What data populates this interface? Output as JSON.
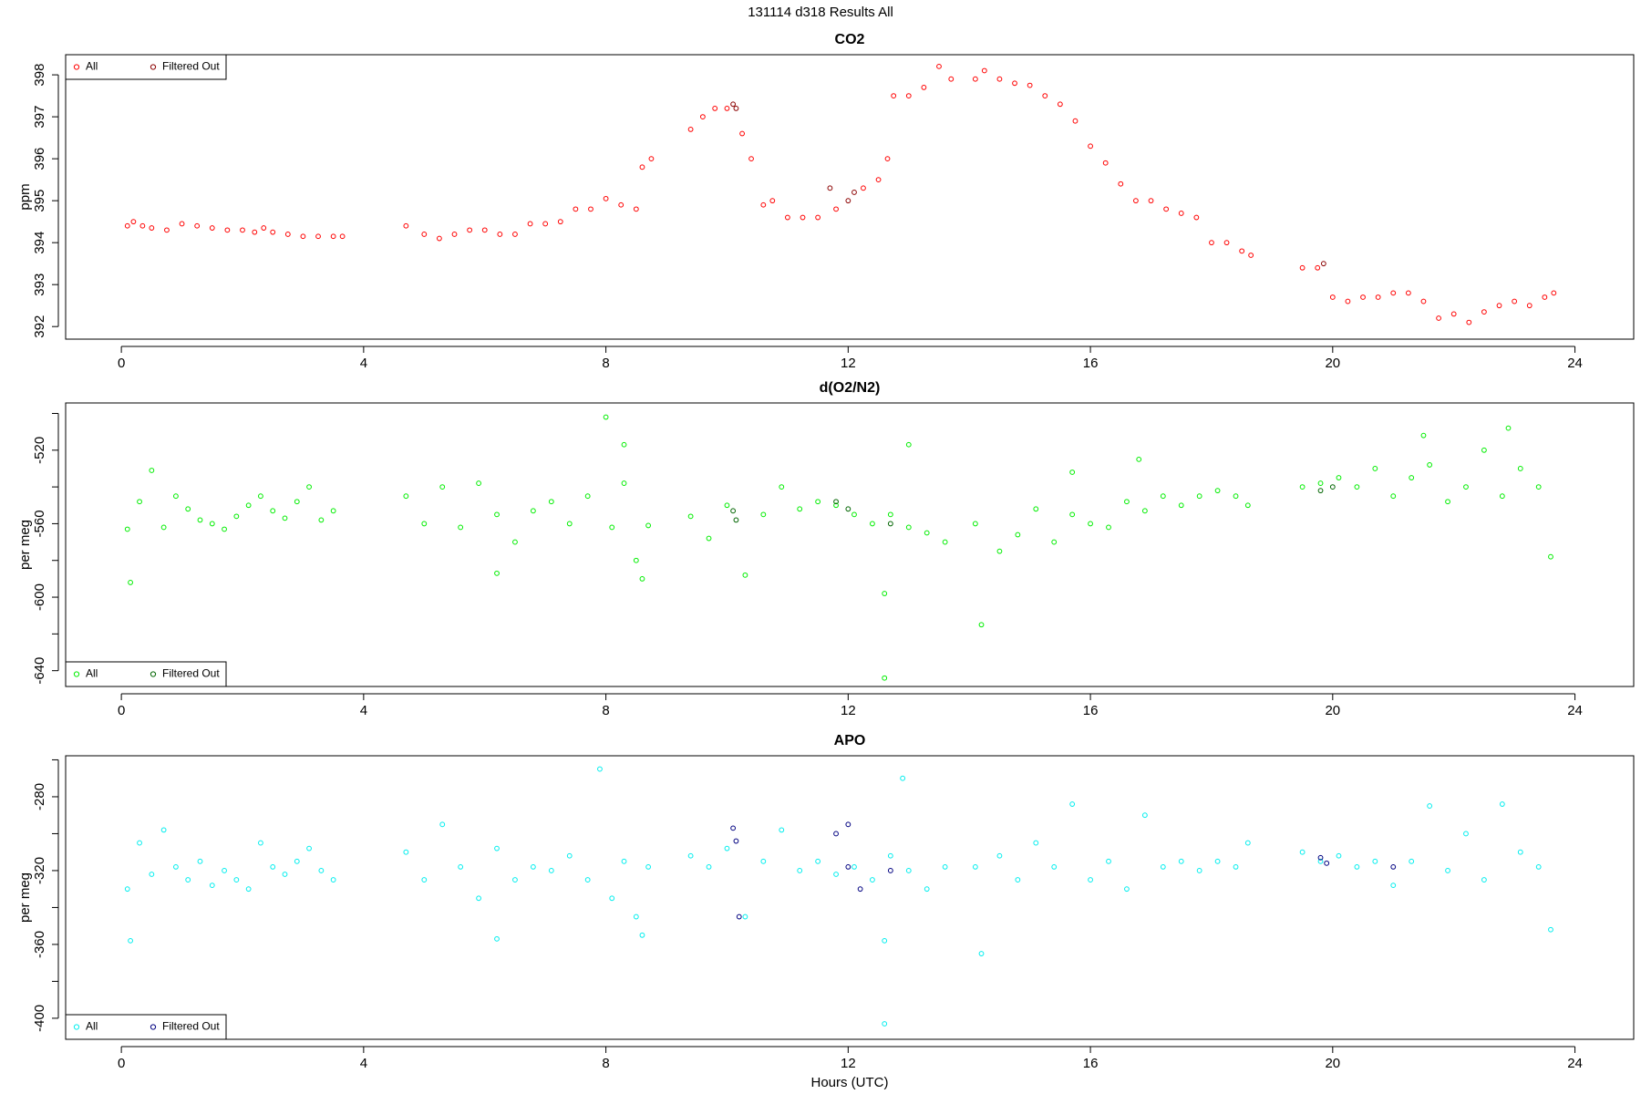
{
  "title": "131114   d318   Results All",
  "chart_data": [
    {
      "type": "scatter",
      "title": "CO2",
      "ylabel": "ppm",
      "legend": "top-left",
      "xlim": [
        -0.92,
        24.97
      ],
      "xticks": [
        0,
        4,
        8,
        12,
        16,
        20,
        24
      ],
      "ylim": [
        391.7,
        398.48
      ],
      "yticks": [
        392,
        393,
        394,
        395,
        396,
        397,
        398
      ],
      "series": [
        {
          "name": "All",
          "color": "#ff0000",
          "x": [
            0.1,
            0.2,
            0.35,
            0.5,
            0.75,
            1.0,
            1.25,
            1.5,
            1.75,
            2.0,
            2.2,
            2.35,
            2.5,
            2.75,
            3.0,
            3.25,
            3.5,
            3.65,
            4.7,
            5.0,
            5.25,
            5.5,
            5.75,
            6.0,
            6.25,
            6.5,
            6.75,
            7.0,
            7.25,
            7.5,
            7.75,
            8.0,
            8.25,
            8.5,
            8.6,
            8.75,
            9.4,
            9.6,
            9.8,
            10.0,
            10.25,
            10.4,
            10.6,
            10.75,
            11.0,
            11.25,
            11.5,
            11.8,
            12.25,
            12.5,
            12.65,
            12.75,
            13.0,
            13.25,
            13.5,
            13.7,
            14.1,
            14.25,
            14.5,
            14.75,
            15.0,
            15.25,
            15.5,
            15.75,
            16.0,
            16.25,
            16.5,
            16.75,
            17.0,
            17.25,
            17.5,
            17.75,
            18.0,
            18.25,
            18.5,
            18.65,
            19.5,
            19.75,
            20.0,
            20.25,
            20.5,
            20.75,
            21.0,
            21.25,
            21.5,
            21.75,
            22.0,
            22.25,
            22.5,
            22.75,
            23.0,
            23.25,
            23.5,
            23.65
          ],
          "values": [
            394.4,
            394.5,
            394.4,
            394.35,
            394.3,
            394.45,
            394.4,
            394.35,
            394.3,
            394.3,
            394.25,
            394.35,
            394.25,
            394.2,
            394.15,
            394.15,
            394.15,
            394.15,
            394.4,
            394.2,
            394.1,
            394.2,
            394.3,
            394.3,
            394.2,
            394.2,
            394.45,
            394.45,
            394.5,
            394.8,
            394.8,
            395.05,
            394.9,
            394.8,
            395.8,
            396.0,
            396.7,
            397.0,
            397.2,
            397.2,
            396.6,
            396.0,
            394.9,
            395.0,
            394.6,
            394.6,
            394.6,
            394.8,
            395.3,
            395.5,
            396.0,
            397.5,
            397.5,
            397.7,
            398.2,
            397.9,
            397.9,
            398.1,
            397.9,
            397.8,
            397.75,
            397.5,
            397.3,
            396.9,
            396.3,
            395.9,
            395.4,
            395.0,
            395.0,
            394.8,
            394.7,
            394.6,
            394.0,
            394.0,
            393.8,
            393.7,
            393.4,
            393.4,
            392.7,
            392.6,
            392.7,
            392.7,
            392.8,
            392.8,
            392.6,
            392.2,
            392.3,
            392.1,
            392.35,
            392.5,
            392.6,
            392.5,
            392.7,
            392.8
          ]
        },
        {
          "name": "Filtered Out",
          "color": "#8b0000",
          "x": [
            10.1,
            10.15,
            11.7,
            12.0,
            12.1,
            19.85
          ],
          "values": [
            397.3,
            397.2,
            395.3,
            395.0,
            395.2,
            393.5
          ]
        }
      ]
    },
    {
      "type": "scatter",
      "title": "d(O2/N2)",
      "ylabel": "per meg",
      "legend": "bottom-left",
      "xlim": [
        -0.92,
        24.97
      ],
      "xticks": [
        0,
        4,
        8,
        12,
        16,
        20,
        24
      ],
      "ylim": [
        -648.6,
        -494.3
      ],
      "yticks": [
        -640,
        -600,
        -560,
        -520
      ],
      "yminorticks": [
        -620,
        -580,
        -540,
        -500
      ],
      "series": [
        {
          "name": "All",
          "color": "#00ee00",
          "x": [
            0.1,
            0.15,
            0.3,
            0.5,
            0.7,
            0.9,
            1.1,
            1.3,
            1.5,
            1.7,
            1.9,
            2.1,
            2.3,
            2.5,
            2.7,
            2.9,
            3.1,
            3.3,
            3.5,
            4.7,
            5.0,
            5.3,
            5.6,
            5.9,
            6.2,
            6.2,
            6.5,
            6.8,
            7.1,
            7.4,
            7.7,
            8.0,
            8.1,
            8.3,
            8.3,
            8.5,
            8.6,
            8.7,
            9.4,
            9.7,
            10.0,
            10.3,
            10.6,
            10.9,
            11.2,
            11.5,
            11.8,
            12.1,
            12.4,
            12.6,
            12.6,
            12.7,
            13.0,
            13.0,
            13.3,
            13.6,
            14.1,
            14.2,
            14.5,
            14.8,
            15.1,
            15.4,
            15.7,
            15.7,
            16.0,
            16.3,
            16.6,
            16.8,
            16.9,
            17.2,
            17.5,
            17.8,
            18.1,
            18.4,
            18.6,
            19.5,
            19.8,
            20.1,
            20.4,
            20.7,
            21.0,
            21.3,
            21.5,
            21.6,
            21.9,
            22.2,
            22.5,
            22.8,
            22.9,
            23.1,
            23.4,
            23.6
          ],
          "values": [
            -563,
            -592,
            -548,
            -531,
            -562,
            -545,
            -552,
            -558,
            -560,
            -563,
            -556,
            -550,
            -545,
            -553,
            -557,
            -548,
            -540,
            -558,
            -553,
            -545,
            -560,
            -540,
            -562,
            -538,
            -555,
            -587,
            -570,
            -553,
            -548,
            -560,
            -545,
            -502,
            -562,
            -538,
            -517,
            -580,
            -590,
            -561,
            -556,
            -568,
            -550,
            -588,
            -555,
            -540,
            -552,
            -548,
            -550,
            -555,
            -560,
            -598,
            -644,
            -555,
            -562,
            -517,
            -565,
            -570,
            -560,
            -615,
            -575,
            -566,
            -552,
            -570,
            -555,
            -532,
            -560,
            -562,
            -548,
            -525,
            -553,
            -545,
            -550,
            -545,
            -542,
            -545,
            -550,
            -540,
            -538,
            -535,
            -540,
            -530,
            -545,
            -535,
            -512,
            -528,
            -548,
            -540,
            -520,
            -545,
            -508,
            -530,
            -540,
            -578
          ]
        },
        {
          "name": "Filtered Out",
          "color": "#006400",
          "x": [
            10.1,
            10.15,
            11.8,
            12.0,
            12.7,
            19.8,
            20.0
          ],
          "values": [
            -553,
            -558,
            -548,
            -552,
            -560,
            -542,
            -540
          ]
        }
      ]
    },
    {
      "type": "scatter",
      "title": "APO",
      "ylabel": "per meg",
      "xlabel": "Hours (UTC)",
      "legend": "bottom-left",
      "xlim": [
        -0.92,
        24.97
      ],
      "xticks": [
        0,
        4,
        8,
        12,
        16,
        20,
        24
      ],
      "ylim": [
        -411.4,
        -257.8
      ],
      "yticks": [
        -400,
        -360,
        -320,
        -280
      ],
      "yminorticks": [
        -380,
        -340,
        -300,
        -260
      ],
      "series": [
        {
          "name": "All",
          "color": "#00eeee",
          "x": [
            0.1,
            0.15,
            0.3,
            0.5,
            0.7,
            0.9,
            1.1,
            1.3,
            1.5,
            1.7,
            1.9,
            2.1,
            2.3,
            2.5,
            2.7,
            2.9,
            3.1,
            3.3,
            3.5,
            4.7,
            5.0,
            5.3,
            5.6,
            5.9,
            6.2,
            6.2,
            6.5,
            6.8,
            7.1,
            7.4,
            7.7,
            7.9,
            8.1,
            8.3,
            8.5,
            8.6,
            8.7,
            9.4,
            9.7,
            10.0,
            10.3,
            10.6,
            10.9,
            11.2,
            11.5,
            11.8,
            12.1,
            12.4,
            12.6,
            12.6,
            12.7,
            12.9,
            13.0,
            13.3,
            13.6,
            14.1,
            14.2,
            14.5,
            14.8,
            15.1,
            15.4,
            15.7,
            16.0,
            16.3,
            16.6,
            16.9,
            17.2,
            17.5,
            17.8,
            18.1,
            18.4,
            18.6,
            19.5,
            19.8,
            20.1,
            20.4,
            20.7,
            21.0,
            21.3,
            21.6,
            21.9,
            22.2,
            22.5,
            22.8,
            23.1,
            23.4,
            23.6
          ],
          "values": [
            -330,
            -358,
            -305,
            -322,
            -298,
            -318,
            -325,
            -315,
            -328,
            -320,
            -325,
            -330,
            -305,
            -318,
            -322,
            -315,
            -308,
            -320,
            -325,
            -310,
            -325,
            -295,
            -318,
            -335,
            -357,
            -308,
            -325,
            -318,
            -320,
            -312,
            -325,
            -265,
            -335,
            -315,
            -345,
            -355,
            -318,
            -312,
            -318,
            -308,
            -345,
            -315,
            -298,
            -320,
            -315,
            -322,
            -318,
            -325,
            -358,
            -403,
            -312,
            -270,
            -320,
            -330,
            -318,
            -318,
            -365,
            -312,
            -325,
            -305,
            -318,
            -284,
            -325,
            -315,
            -330,
            -290,
            -318,
            -315,
            -320,
            -315,
            -318,
            -305,
            -310,
            -315,
            -312,
            -318,
            -315,
            -328,
            -315,
            -285,
            -320,
            -300,
            -325,
            -284,
            -310,
            -318,
            -352
          ]
        },
        {
          "name": "Filtered Out",
          "color": "#000080",
          "x": [
            10.1,
            10.15,
            10.2,
            11.8,
            12.0,
            12.0,
            12.2,
            12.7,
            19.8,
            19.9,
            21.0
          ],
          "values": [
            -297,
            -304,
            -345,
            -300,
            -295,
            -318,
            -330,
            -320,
            -313,
            -316,
            -318
          ]
        }
      ]
    }
  ]
}
